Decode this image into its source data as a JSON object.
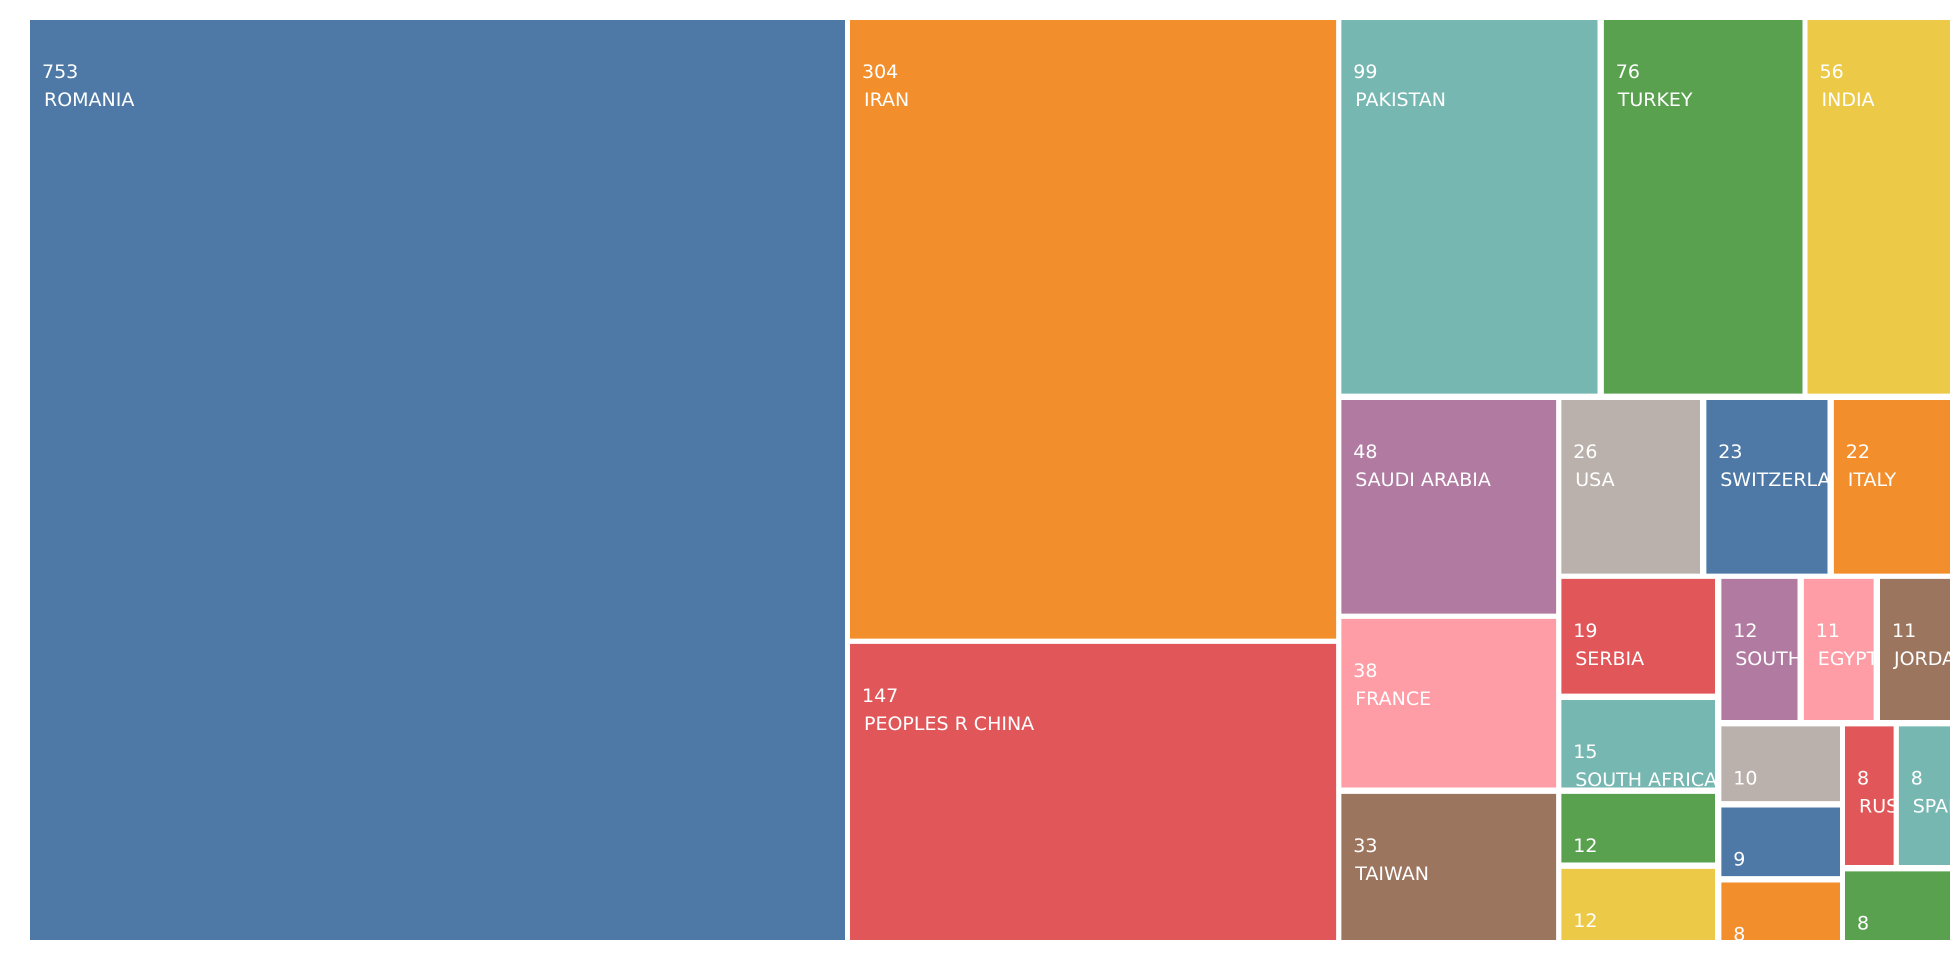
{
  "chart_data": {
    "type": "treemap",
    "categories": [
      "ROMANIA",
      "IRAN",
      "PEOPLES R CHINA",
      "PAKISTAN",
      "TURKEY",
      "INDIA",
      "SAUDI ARABIA",
      "USA",
      "SWITZERLAND",
      "ITALY",
      "FRANCE",
      "TAIWAN",
      "SERBIA",
      "SOUTH AFRICA",
      null,
      null,
      "SOUTH KOREA",
      "EGYPT",
      "JORDAN",
      null,
      null,
      null,
      "RUSSIA",
      "SPAIN",
      null
    ],
    "values": [
      753,
      304,
      147,
      99,
      76,
      56,
      48,
      26,
      23,
      22,
      38,
      33,
      19,
      15,
      12,
      12,
      12,
      11,
      11,
      10,
      9,
      8,
      8,
      8,
      8
    ],
    "colors": [
      "#4e79a7",
      "#f28e2b",
      "#e15759",
      "#76b7b2",
      "#59a14f",
      "#edc948",
      "#b07aa1",
      "#bab0ac",
      "#4e79a7",
      "#f28e2b",
      "#ff9da7",
      "#9c755f",
      "#e15759",
      "#76b7b2",
      "#59a14f",
      "#edc948",
      "#b07aa1",
      "#ff9da7",
      "#9c755f",
      "#bab0ac",
      "#4e79a7",
      "#f28e2b",
      "#e15759",
      "#76b7b2",
      "#59a14f"
    ]
  }
}
